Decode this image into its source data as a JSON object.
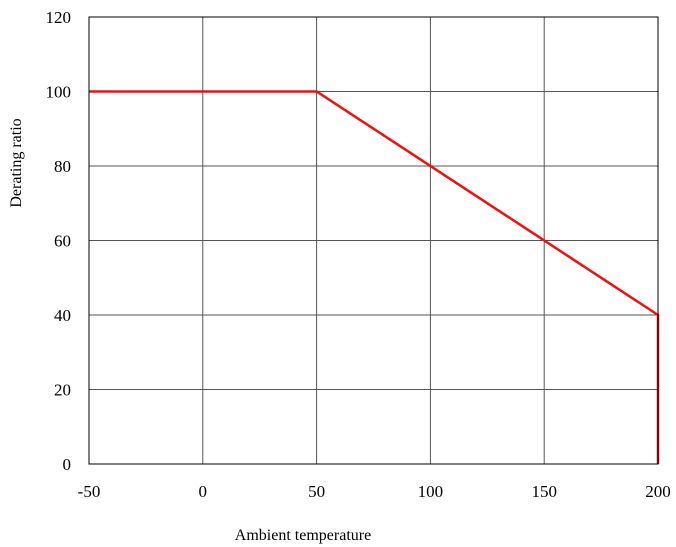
{
  "chart_data": {
    "type": "line",
    "title": "",
    "xlabel": "Ambient temperature",
    "ylabel": "Derating ratio",
    "xlim": [
      -50,
      200
    ],
    "ylim": [
      0,
      120
    ],
    "xticks": [
      -50,
      0,
      50,
      100,
      150,
      200
    ],
    "yticks": [
      0,
      20,
      40,
      60,
      80,
      100,
      120
    ],
    "xtick_labels": [
      "-50",
      "0",
      "50",
      "100",
      "150",
      "200"
    ],
    "ytick_labels": [
      "0",
      "20",
      "40",
      "60",
      "80",
      "100",
      "120"
    ],
    "grid": true,
    "legend": "none",
    "series": [
      {
        "color": "#ee1111",
        "x": [
          -50,
          50,
          200,
          200
        ],
        "y": [
          100,
          100,
          40,
          0
        ]
      }
    ]
  }
}
